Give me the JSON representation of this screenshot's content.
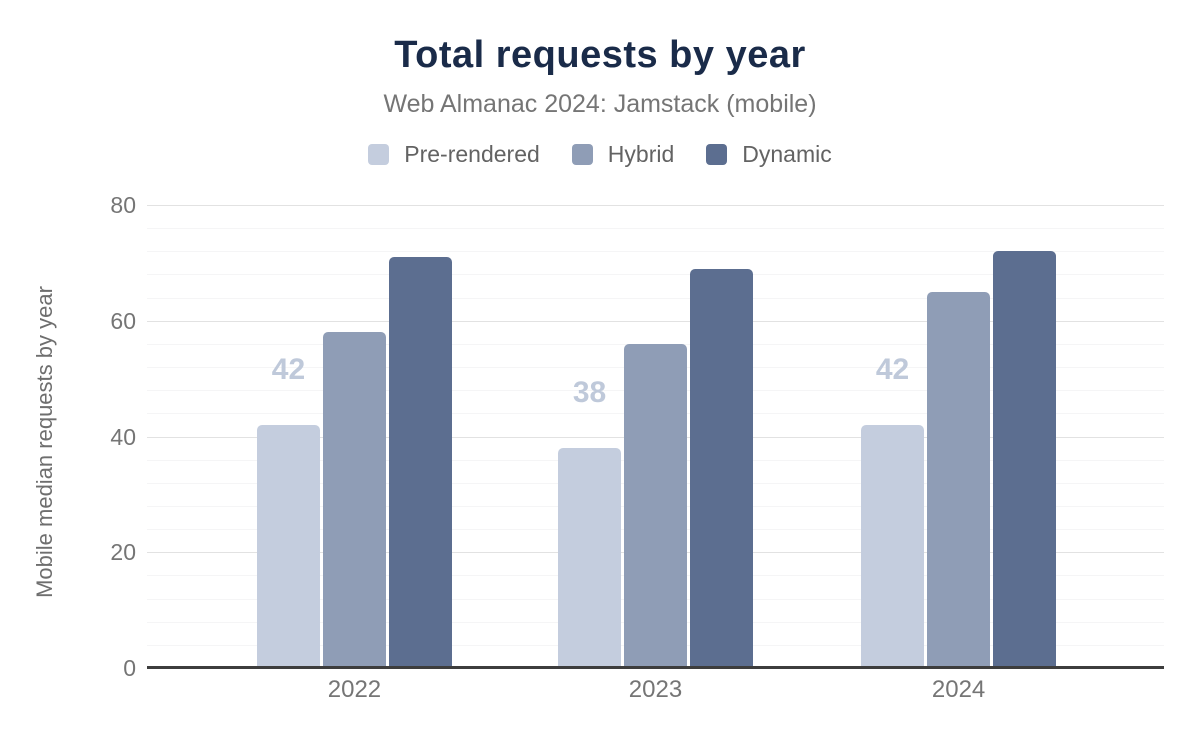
{
  "header": {
    "title": "Total requests by year",
    "subtitle": "Web Almanac 2024: Jamstack (mobile)"
  },
  "chart_data": {
    "type": "bar",
    "title": "Total requests by year",
    "subtitle": "Web Almanac 2024: Jamstack (mobile)",
    "ylabel": "Mobile median requests by year",
    "xlabel": "",
    "categories": [
      "2022",
      "2023",
      "2024"
    ],
    "series": [
      {
        "name": "Pre-rendered",
        "color": "#c4cdde",
        "values": [
          42,
          38,
          42
        ],
        "data_labels": [
          "42",
          "38",
          "42"
        ]
      },
      {
        "name": "Hybrid",
        "color": "#8f9db6",
        "values": [
          58,
          56,
          65
        ],
        "data_labels": []
      },
      {
        "name": "Dynamic",
        "color": "#5c6e90",
        "values": [
          71,
          69,
          72
        ],
        "data_labels": []
      }
    ],
    "ylim": [
      0,
      80
    ],
    "yticks": [
      0,
      20,
      40,
      60,
      80
    ],
    "minor_gridline_step": 4,
    "major_gridline_step": 20,
    "grid": true,
    "legend_position": "top"
  },
  "colors": {
    "title_text": "#1a2b49",
    "subtitle_text": "#757575",
    "legend_text": "#636363",
    "tick_text": "#757575",
    "axis_title_text": "#6e6e6e",
    "data_label_text": "#bfc9da",
    "axis_line": "#3d3d3d",
    "grid_major": "#e2e2e2",
    "grid_minor": "#f5f5f6",
    "background": "#ffffff"
  }
}
